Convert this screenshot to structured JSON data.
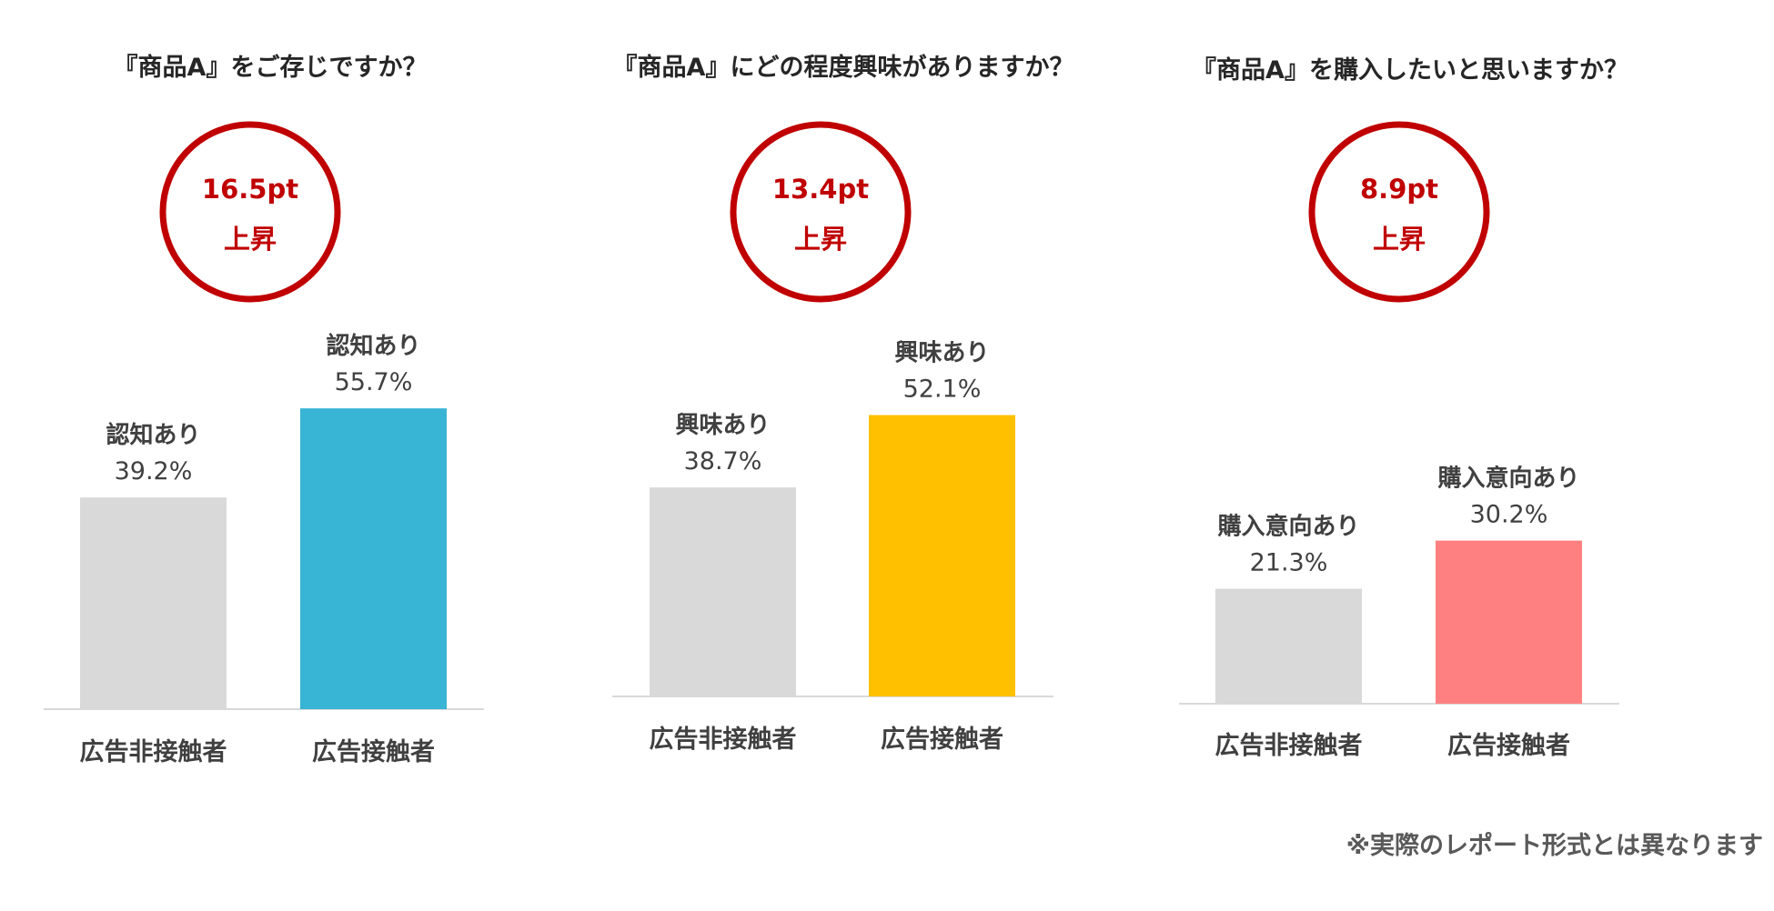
{
  "chart_data": [
    {
      "type": "bar",
      "title": "『商品A』をご存じですか？",
      "badge": {
        "value": "16.5pt",
        "label": "上昇"
      },
      "categories": [
        "広告非接触者",
        "広告接触者"
      ],
      "bar_labels": [
        "認知あり",
        "認知あり"
      ],
      "value_labels": [
        "39.2%",
        "55.7%"
      ],
      "values": [
        39.2,
        55.7
      ],
      "colors": [
        "#d9d9d9",
        "#38b4d4"
      ],
      "ylim": [
        0,
        100
      ]
    },
    {
      "type": "bar",
      "title": "『商品A』にどの程度興味がありますか？",
      "badge": {
        "value": "13.4pt",
        "label": "上昇"
      },
      "categories": [
        "広告非接触者",
        "広告接触者"
      ],
      "bar_labels": [
        "興味あり",
        "興味あり"
      ],
      "value_labels": [
        "38.7%",
        "52.1%"
      ],
      "values": [
        38.7,
        52.1
      ],
      "colors": [
        "#d9d9d9",
        "#ffc000"
      ],
      "ylim": [
        0,
        100
      ]
    },
    {
      "type": "bar",
      "title": "『商品A』を購入したいと思いますか？",
      "badge": {
        "value": "8.9pt",
        "label": "上昇"
      },
      "categories": [
        "広告非接触者",
        "広告接触者"
      ],
      "bar_labels": [
        "購入意向あり",
        "購入意向あり"
      ],
      "value_labels": [
        "21.3%",
        "30.2%"
      ],
      "values": [
        21.3,
        30.2
      ],
      "colors": [
        "#d9d9d9",
        "#ff8080"
      ],
      "ylim": [
        0,
        100
      ]
    }
  ],
  "badge_color": "#c00000",
  "footnote": "※実際のレポート形式とは異なります"
}
